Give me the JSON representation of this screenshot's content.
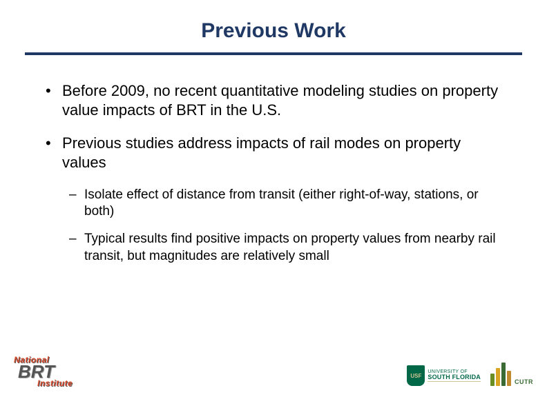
{
  "title": "Previous Work",
  "bullets": {
    "b1": "Before 2009, no recent quantitative modeling studies on property value impacts of BRT in the U.S.",
    "b2": "Previous studies address impacts of rail modes on property values",
    "b2a": "Isolate effect of distance from transit (either right-of-way, stations, or both)",
    "b2b": "Typical results find positive impacts on property values from nearby rail transit, but magnitudes are relatively small"
  },
  "logos": {
    "nbrti": {
      "top": "National",
      "mid": "BRT",
      "bot": "Institute"
    },
    "usf": {
      "shield": "USF",
      "line1": "UNIVERSITY OF",
      "line2": "SOUTH FLORIDA"
    },
    "cutr": {
      "label": "CUTR",
      "bars": [
        {
          "h": 18,
          "c": "#6b8e23"
        },
        {
          "h": 26,
          "c": "#d9a520"
        },
        {
          "h": 34,
          "c": "#3a6b35"
        },
        {
          "h": 22,
          "c": "#c08a2e"
        }
      ]
    }
  },
  "colors": {
    "title": "#1f3864",
    "divider": "#1f3864",
    "text": "#000000",
    "background": "#ffffff"
  }
}
